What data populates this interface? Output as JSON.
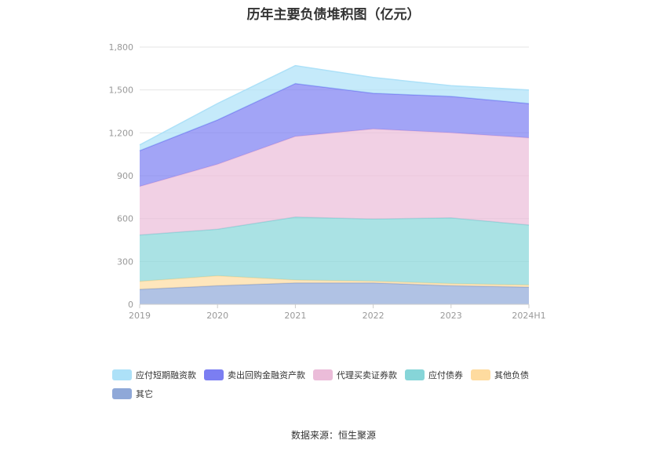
{
  "source": "数据来源：恒生聚源",
  "colors": {
    "axis_text": "#999999",
    "gridline": "#e6e6e6"
  },
  "chart_data": {
    "type": "area",
    "stacked": true,
    "title": "历年主要负债堆积图（亿元）",
    "xlabel": "",
    "ylabel": "",
    "categories": [
      "2019",
      "2020",
      "2021",
      "2022",
      "2023",
      "2024H1"
    ],
    "ylim": [
      0,
      1800
    ],
    "yticks": [
      "0",
      "300",
      "600",
      "900",
      "1,200",
      "1,500",
      "1,800"
    ],
    "ytick_values": [
      0,
      300,
      600,
      900,
      1200,
      1500,
      1800
    ],
    "grid": true,
    "legend_position": "bottom-left",
    "series": [
      {
        "name": "其它",
        "color": "#8fa8d8",
        "values": [
          105,
          130,
          150,
          150,
          130,
          120
        ]
      },
      {
        "name": "其他负债",
        "color": "#fedb9f",
        "values": [
          55,
          70,
          20,
          12,
          15,
          15
        ]
      },
      {
        "name": "应付债券",
        "color": "#86d5d8",
        "values": [
          325,
          325,
          440,
          435,
          460,
          420
        ]
      },
      {
        "name": "代理买卖证券款",
        "color": "#ebbcd9",
        "values": [
          340,
          455,
          565,
          630,
          595,
          610
        ]
      },
      {
        "name": "卖出回购金融资产款",
        "color": "#7b7ef2",
        "values": [
          250,
          310,
          370,
          250,
          255,
          240
        ]
      },
      {
        "name": "应付短期融资款",
        "color": "#ade1f8",
        "values": [
          40,
          115,
          125,
          110,
          75,
          95
        ]
      }
    ],
    "legend_order": [
      "应付短期融资款",
      "卖出回购金融资产款",
      "代理买卖证券款",
      "应付债券",
      "其他负债",
      "其它"
    ]
  }
}
